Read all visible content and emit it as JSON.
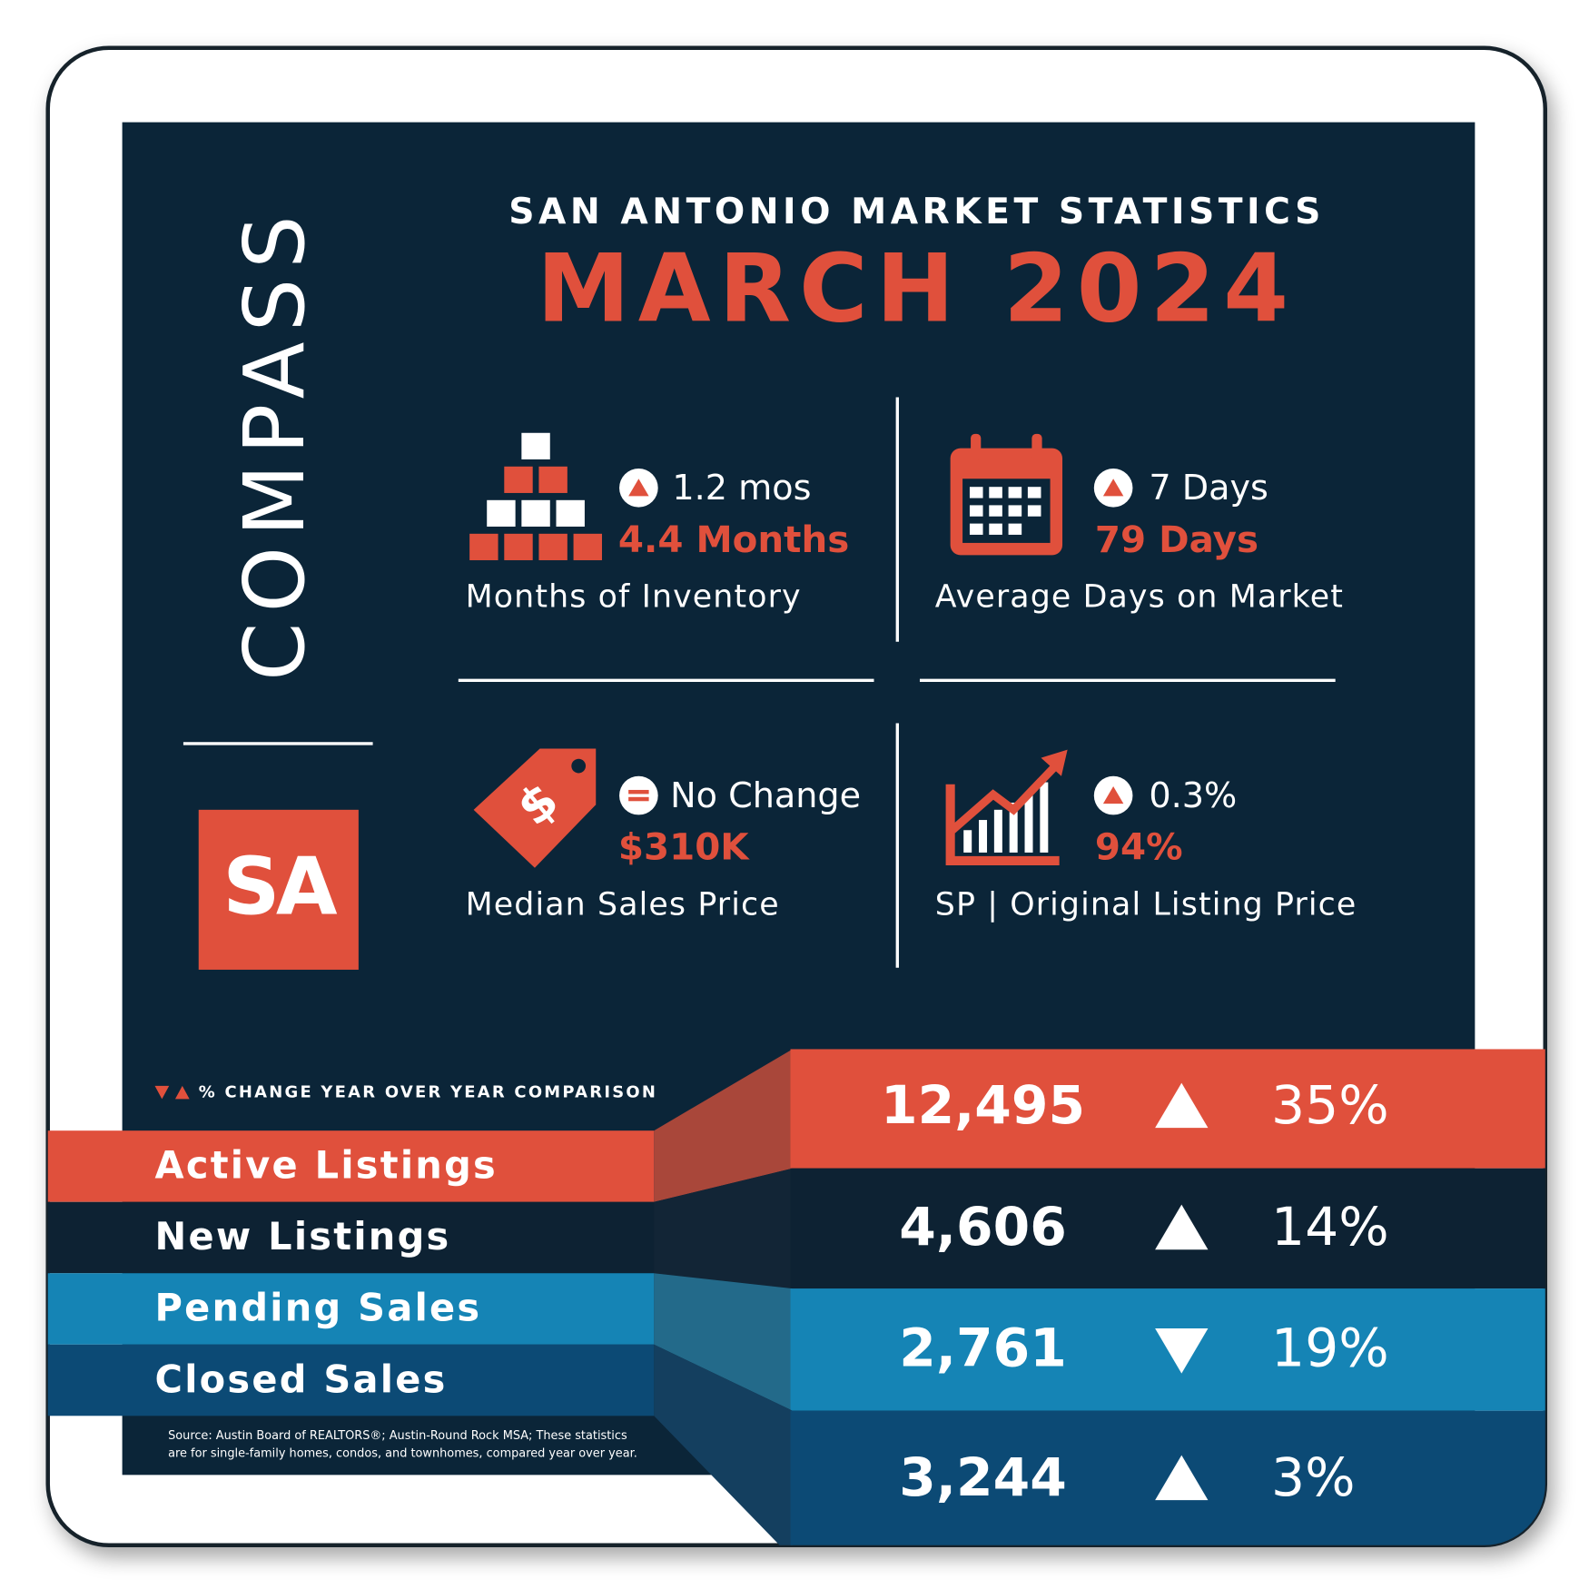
{
  "brand": "COMPASS",
  "badge": "SA",
  "header": {
    "subtitle": "SAN ANTONIO MARKET STATISTICS",
    "title": "MARCH 2024"
  },
  "stats": [
    {
      "direction": "up",
      "change": "1.2 mos",
      "value": "4.4 Months",
      "label": "Months of Inventory"
    },
    {
      "direction": "up",
      "change": "7 Days",
      "value": "79 Days",
      "label": "Average Days on Market"
    },
    {
      "direction": "same",
      "change": "No Change",
      "value": "$310K",
      "label": "Median Sales Price"
    },
    {
      "direction": "up",
      "change": "0.3%",
      "value": "94%",
      "label": "SP | Original Listing Price"
    }
  ],
  "legend": "% CHANGE YEAR OVER YEAR COMPARISON",
  "rows": [
    {
      "label": "Active Listings",
      "value": "12,495",
      "direction": "up",
      "change": "35%"
    },
    {
      "label": "New Listings",
      "value": "4,606",
      "direction": "up",
      "change": "14%"
    },
    {
      "label": "Pending Sales",
      "value": "2,761",
      "direction": "down",
      "change": "19%"
    },
    {
      "label": "Closed Sales",
      "value": "3,244",
      "direction": "up",
      "change": "3%"
    }
  ],
  "source": [
    "Source: Austin Board of REALTORS®; Austin-Round Rock MSA; These statistics",
    "are for single-family homes, condos, and townhomes, compared year over year."
  ]
}
